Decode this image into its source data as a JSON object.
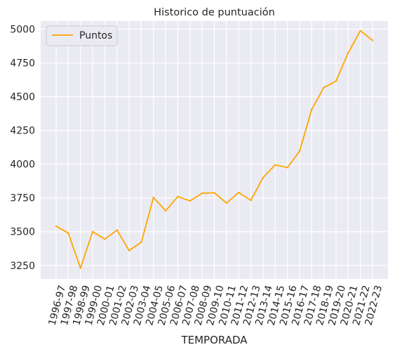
{
  "chart_data": {
    "type": "line",
    "title": "Historico de puntuación",
    "xlabel": "TEMPORADA",
    "ylabel": "",
    "ylim": [
      3150,
      5060
    ],
    "yticks": [
      3250,
      3500,
      3750,
      4000,
      4250,
      4500,
      4750,
      5000
    ],
    "grid": true,
    "legend_position": "top-left",
    "categories": [
      "1996-97",
      "1997-98",
      "1998-99",
      "1999-00",
      "2000-01",
      "2001-02",
      "2002-03",
      "2003-04",
      "2004-05",
      "2005-06",
      "2006-07",
      "2007-08",
      "2008-09",
      "2009-10",
      "2010-11",
      "2011-12",
      "2012-13",
      "2013-14",
      "2014-15",
      "2015-16",
      "2016-17",
      "2017-18",
      "2018-19",
      "2019-20",
      "2020-21",
      "2021-22",
      "2022-23"
    ],
    "series": [
      {
        "name": "Puntos",
        "color": "#ffa500",
        "values": [
          3540,
          3490,
          3230,
          3500,
          3445,
          3512,
          3360,
          3422,
          3753,
          3655,
          3760,
          3728,
          3785,
          3788,
          3712,
          3790,
          3732,
          3900,
          3995,
          3975,
          4095,
          4405,
          4568,
          4615,
          4825,
          4988,
          4918
        ]
      }
    ]
  },
  "colors": {
    "plot_background": "#eaeaf2",
    "grid": "#ffffff",
    "line": "#ffa500",
    "text": "#262626"
  }
}
